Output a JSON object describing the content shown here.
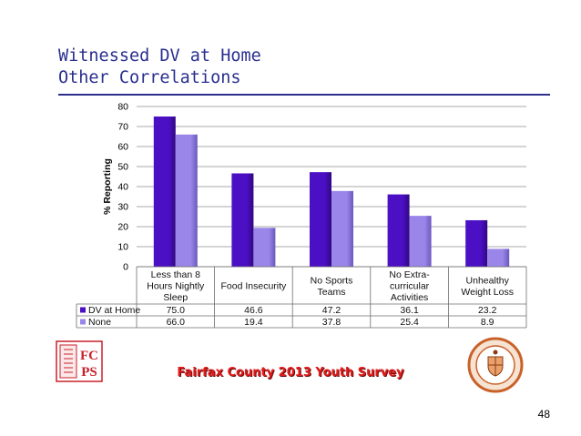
{
  "slide": {
    "title_line1": "Witnessed DV at Home",
    "title_line2": "Other Correlations",
    "footer": "Fairfax County 2013 Youth Survey",
    "page_number": "48",
    "logo_text": "FCPS"
  },
  "colors": {
    "series1": "#4b0fc4",
    "series1_dark": "#30087f",
    "series2": "#9a86e8",
    "series2_dark": "#6a58bd",
    "title": "#2a2f8f",
    "footer": "#e01b1b",
    "logo_red": "#c8202a",
    "seal_orange": "#c9622a"
  },
  "chart_data": {
    "type": "bar",
    "ylabel": "% Reporting",
    "ylim": [
      0,
      80
    ],
    "yticks": [
      0,
      10,
      20,
      30,
      40,
      50,
      60,
      70,
      80
    ],
    "grid": true,
    "categories": [
      [
        "Less than 8",
        "Hours Nightly",
        "Sleep"
      ],
      [
        "Food Insecurity"
      ],
      [
        "No Sports",
        "Teams"
      ],
      [
        "No Extra-",
        "curricular",
        "Activities"
      ],
      [
        "Unhealthy",
        "Weight Loss"
      ]
    ],
    "series": [
      {
        "name": "DV at Home",
        "values": [
          75.0,
          46.6,
          47.2,
          36.1,
          23.2
        ],
        "labels": [
          "75.0",
          "46.6",
          "47.2",
          "36.1",
          "23.2"
        ]
      },
      {
        "name": "None",
        "values": [
          66.0,
          19.4,
          37.8,
          25.4,
          8.9
        ],
        "labels": [
          "66.0",
          "19.4",
          "37.8",
          "25.4",
          "8.9"
        ]
      }
    ]
  }
}
